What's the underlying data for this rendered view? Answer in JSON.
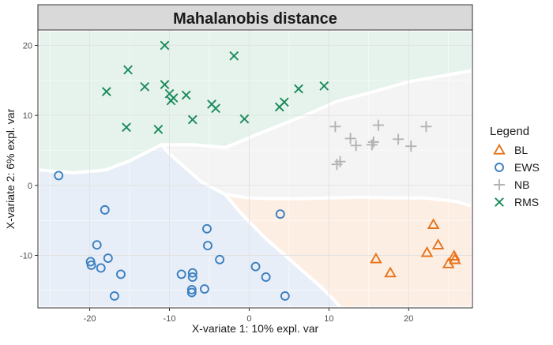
{
  "chart_data": {
    "type": "scatter",
    "title": "Mahalanobis distance",
    "xlabel": "X-variate 1: 10% expl. var",
    "ylabel": "X-variate 2: 6% expl. var",
    "xlim": [
      -26.5,
      28
    ],
    "ylim": [
      -17.5,
      22.2
    ],
    "x_ticks": [
      -20,
      -10,
      0,
      10,
      20
    ],
    "y_ticks": [
      -10,
      0,
      10,
      20
    ],
    "grid": true,
    "legend": {
      "title": "Legend",
      "position": "right",
      "entries": [
        {
          "label": "BL",
          "marker": "triangle",
          "color": "#e8731a"
        },
        {
          "label": "EWS",
          "marker": "circle",
          "color": "#3a7fc1"
        },
        {
          "label": "NB",
          "marker": "plus",
          "color": "#b3b3b3"
        },
        {
          "label": "RMS",
          "marker": "cross",
          "color": "#1a8a5a"
        }
      ]
    },
    "regions": [
      {
        "class": "RMS",
        "color": "#e5f3ec",
        "polygon": [
          [
            -26.5,
            22.2
          ],
          [
            -26.5,
            2.2
          ],
          [
            -22,
            1.8
          ],
          [
            -18,
            2.2
          ],
          [
            -15,
            3.5
          ],
          [
            -11,
            5.8
          ],
          [
            -7,
            5.8
          ],
          [
            -3,
            5.4
          ],
          [
            0,
            6.8
          ],
          [
            3,
            8.2
          ],
          [
            7,
            10
          ],
          [
            11,
            12
          ],
          [
            16,
            13.5
          ],
          [
            20,
            14.8
          ],
          [
            24,
            15.6
          ],
          [
            28,
            16.4
          ],
          [
            28,
            22.2
          ]
        ]
      },
      {
        "class": "NB",
        "color": "#f4f4f4",
        "polygon": [
          [
            -11,
            5.8
          ],
          [
            -7,
            5.8
          ],
          [
            -3,
            5.4
          ],
          [
            0,
            6.8
          ],
          [
            3,
            8.2
          ],
          [
            7,
            10
          ],
          [
            11,
            12
          ],
          [
            16,
            13.5
          ],
          [
            20,
            14.8
          ],
          [
            24,
            15.6
          ],
          [
            28,
            16.4
          ],
          [
            28,
            -3
          ],
          [
            26,
            -2.3
          ],
          [
            22,
            -1.8
          ],
          [
            18,
            -1.8
          ],
          [
            14,
            -1.7
          ],
          [
            10,
            -1.8
          ],
          [
            6,
            -1.9
          ],
          [
            3,
            -1.9
          ],
          [
            0,
            -1.8
          ],
          [
            -3,
            -1.3
          ],
          [
            -6,
            0.5
          ],
          [
            -8,
            2.5
          ],
          [
            -10,
            4.5
          ]
        ]
      },
      {
        "class": "EWS",
        "color": "#e8eef7",
        "polygon": [
          [
            -26.5,
            2.2
          ],
          [
            -22,
            1.8
          ],
          [
            -18,
            2.2
          ],
          [
            -15,
            3.5
          ],
          [
            -11,
            5.8
          ],
          [
            -10,
            4.5
          ],
          [
            -8,
            2.5
          ],
          [
            -6,
            0.5
          ],
          [
            -3,
            -1.3
          ],
          [
            -1,
            -4
          ],
          [
            2,
            -7.5
          ],
          [
            5,
            -10.5
          ],
          [
            7,
            -12.5
          ],
          [
            9,
            -14.5
          ],
          [
            10.5,
            -16.2
          ],
          [
            11.5,
            -17.5
          ],
          [
            -26.5,
            -17.5
          ]
        ]
      },
      {
        "class": "BL",
        "color": "#fdeee4",
        "polygon": [
          [
            -3,
            -1.3
          ],
          [
            0,
            -1.8
          ],
          [
            3,
            -1.9
          ],
          [
            6,
            -1.9
          ],
          [
            10,
            -1.8
          ],
          [
            14,
            -1.7
          ],
          [
            18,
            -1.8
          ],
          [
            22,
            -1.8
          ],
          [
            26,
            -2.3
          ],
          [
            28,
            -3
          ],
          [
            28,
            -17.5
          ],
          [
            11.5,
            -17.5
          ],
          [
            10.5,
            -16.2
          ],
          [
            9,
            -14.5
          ],
          [
            7,
            -12.5
          ],
          [
            5,
            -10.5
          ],
          [
            2,
            -7.5
          ],
          [
            -1,
            -4
          ]
        ]
      }
    ],
    "series": [
      {
        "name": "BL",
        "marker": "triangle",
        "color": "#e8731a",
        "points": [
          [
            15.9,
            -10.5
          ],
          [
            17.7,
            -12.5
          ],
          [
            22.3,
            -9.6
          ],
          [
            23.1,
            -5.6
          ],
          [
            23.7,
            -8.5
          ],
          [
            25,
            -11.2
          ],
          [
            25.7,
            -10.1
          ],
          [
            25.8,
            -10.6
          ]
        ]
      },
      {
        "name": "EWS",
        "marker": "circle",
        "color": "#3a7fc1",
        "points": [
          [
            -23.9,
            1.4
          ],
          [
            -18.1,
            -3.5
          ],
          [
            -19.1,
            -8.5
          ],
          [
            -17.7,
            -10.4
          ],
          [
            -19.9,
            -10.9
          ],
          [
            -19.8,
            -11.4
          ],
          [
            -18.6,
            -11.8
          ],
          [
            -16.1,
            -12.7
          ],
          [
            -16.9,
            -15.8
          ],
          [
            -8.5,
            -12.7
          ],
          [
            -7.1,
            -12.5
          ],
          [
            -7.1,
            -13.1
          ],
          [
            -7.2,
            -14.9
          ],
          [
            -7.2,
            -15.3
          ],
          [
            -5.6,
            -14.8
          ],
          [
            -5.3,
            -6.2
          ],
          [
            -5.2,
            -8.6
          ],
          [
            -3.7,
            -10.6
          ],
          [
            0.8,
            -11.6
          ],
          [
            2.1,
            -13.1
          ],
          [
            3.9,
            -4.1
          ],
          [
            4.5,
            -15.8
          ]
        ]
      },
      {
        "name": "NB",
        "marker": "plus",
        "color": "#b3b3b3",
        "points": [
          [
            10.8,
            8.4
          ],
          [
            12.7,
            6.7
          ],
          [
            13.4,
            5.7
          ],
          [
            11.4,
            3.4
          ],
          [
            11,
            3.0
          ],
          [
            15.4,
            5.8
          ],
          [
            15.6,
            6.2
          ],
          [
            16.2,
            8.6
          ],
          [
            18.7,
            6.6
          ],
          [
            20.3,
            5.6
          ],
          [
            22.2,
            8.4
          ]
        ]
      },
      {
        "name": "RMS",
        "marker": "cross",
        "color": "#1a8a5a",
        "points": [
          [
            -10.6,
            20.0
          ],
          [
            -1.9,
            18.5
          ],
          [
            -15.2,
            16.5
          ],
          [
            -13.1,
            14.1
          ],
          [
            -10.6,
            14.4
          ],
          [
            -17.9,
            13.4
          ],
          [
            -10,
            13.1
          ],
          [
            -9.5,
            12.5
          ],
          [
            -9.8,
            12.1
          ],
          [
            -7.9,
            12.9
          ],
          [
            -4.7,
            11.6
          ],
          [
            -4.2,
            11.0
          ],
          [
            -15.4,
            8.3
          ],
          [
            -11.4,
            8.0
          ],
          [
            -7.1,
            9.4
          ],
          [
            -0.6,
            9.5
          ],
          [
            3.8,
            11.2
          ],
          [
            4.4,
            11.9
          ],
          [
            6.2,
            13.8
          ],
          [
            9.4,
            14.2
          ]
        ]
      }
    ]
  }
}
